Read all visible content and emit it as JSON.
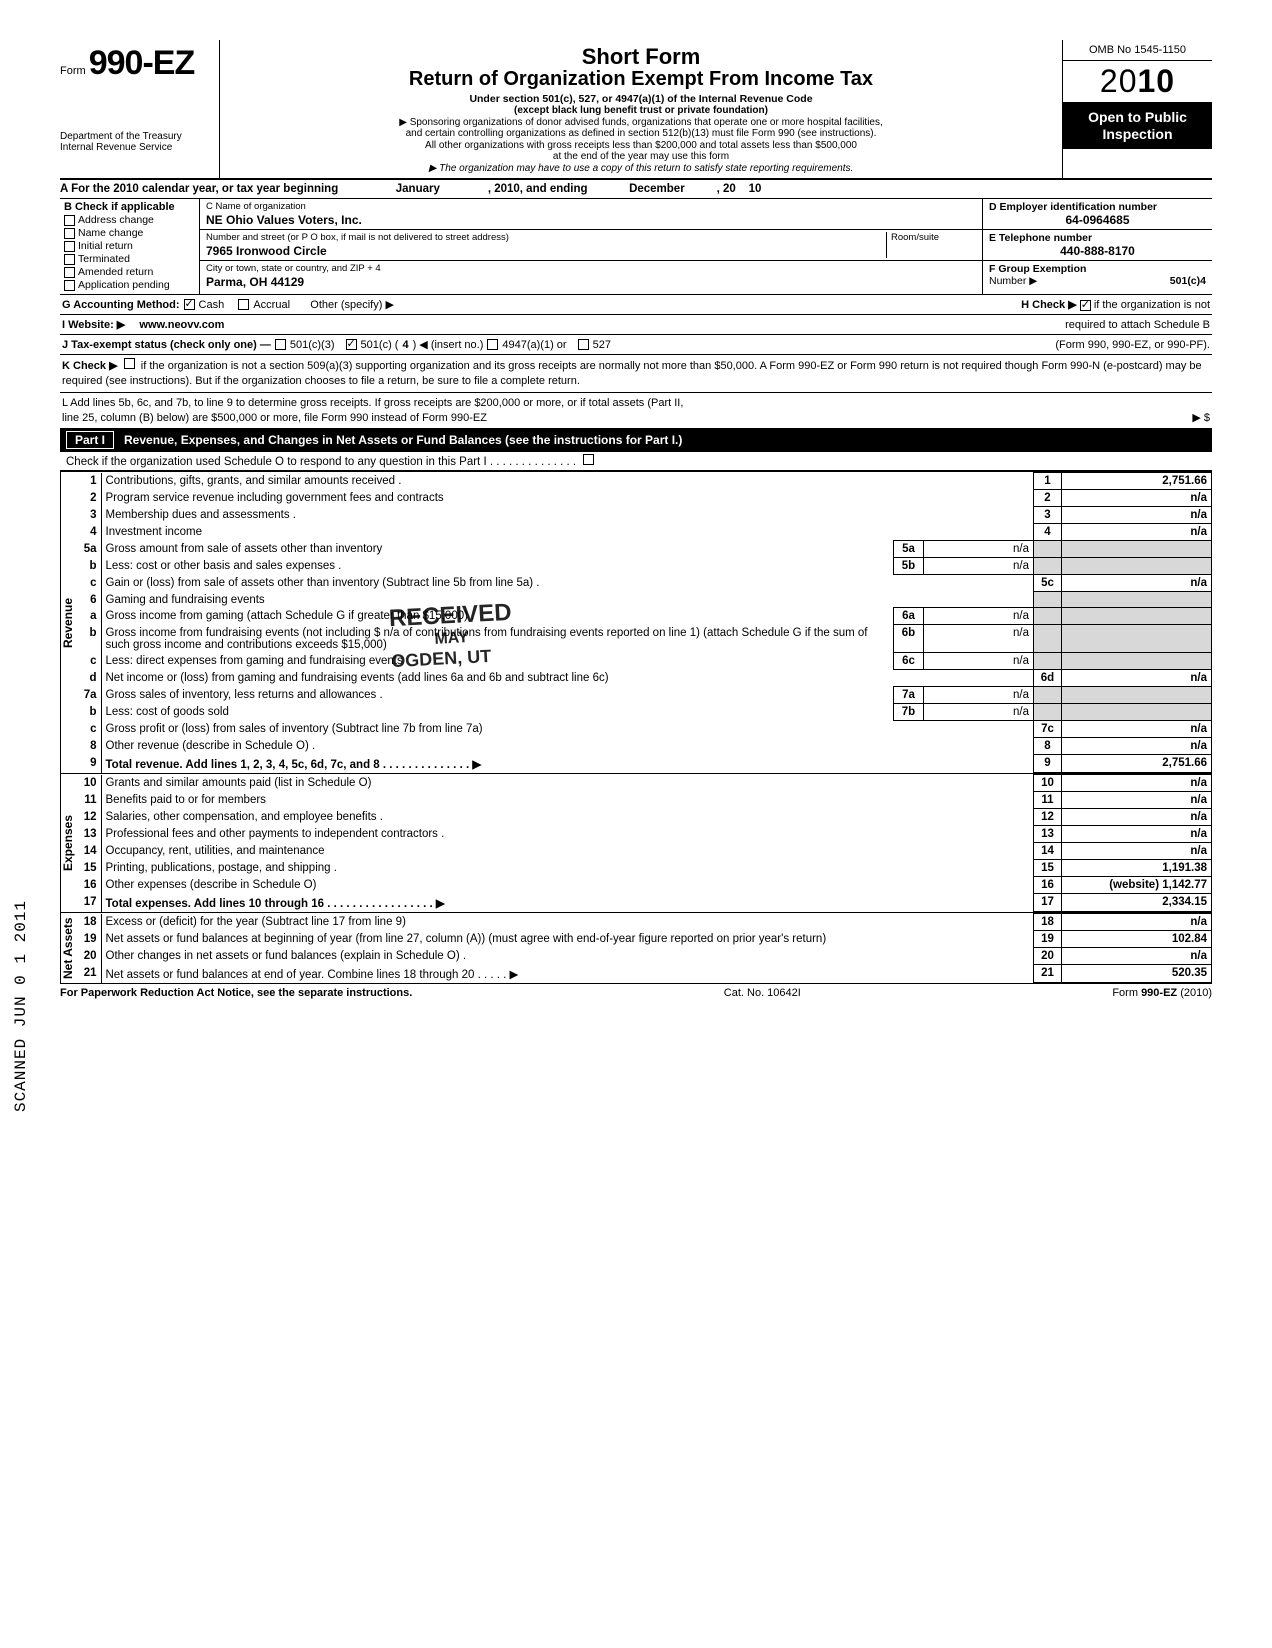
{
  "header": {
    "form_prefix": "Form",
    "form_number": "990-EZ",
    "dept1": "Department of the Treasury",
    "dept2": "Internal Revenue Service",
    "title1": "Short Form",
    "title2": "Return of Organization Exempt From Income Tax",
    "subtitle": "Under section 501(c), 527, or 4947(a)(1) of the Internal Revenue Code",
    "sub_paren": "(except black lung benefit trust or private foundation)",
    "sub_line1": "▶ Sponsoring organizations of donor advised funds, organizations that operate one or more hospital facilities,",
    "sub_line2": "and certain controlling organizations as defined in section 512(b)(13) must file Form 990 (see instructions).",
    "sub_line3": "All other organizations with gross receipts less than $200,000 and total assets less than $500,000",
    "sub_line4": "at the end of the year may use this form",
    "sub_line5": "▶ The organization may have to use a copy of this return to satisfy state reporting requirements.",
    "omb": "OMB No 1545-1150",
    "year_prefix": "20",
    "year_suffix": "10",
    "open1": "Open to Public",
    "open2": "Inspection"
  },
  "rowA": {
    "label": "A For the 2010 calendar year, or tax year beginning",
    "begin": "January",
    "mid": ", 2010, and ending",
    "end": "December",
    "y": ", 20",
    "yv": "10"
  },
  "colB": {
    "hdr": "B  Check if applicable",
    "items": [
      "Address change",
      "Name change",
      "Initial return",
      "Terminated",
      "Amended return",
      "Application pending"
    ]
  },
  "colC": {
    "name_lbl": "C  Name of organization",
    "name": "NE Ohio Values Voters, Inc.",
    "street_lbl": "Number and street (or P O  box, if mail is not delivered to street address)",
    "street": "7965 Ironwood Circle",
    "room_lbl": "Room/suite",
    "city_lbl": "City or town, state or country, and ZIP + 4",
    "city": "Parma, OH 44129"
  },
  "colD": {
    "ein_lbl": "D Employer identification number",
    "ein": "64-0964685",
    "tel_lbl": "E  Telephone number",
    "tel": "440-888-8170",
    "grp_lbl": "F  Group Exemption",
    "grp2": "Number  ▶",
    "grp_val": "501(c)4"
  },
  "lineG": {
    "lbl": "G  Accounting Method:",
    "cash": "Cash",
    "accrual": "Accrual",
    "other": "Other (specify) ▶",
    "h_lbl": "H  Check ▶",
    "h_txt": "if the organization is not",
    "h_txt2": "required to attach Schedule B",
    "h_txt3": "(Form 990, 990-EZ, or 990-PF)."
  },
  "lineI": {
    "lbl": "I   Website: ▶",
    "val": "www.neovv.com"
  },
  "lineJ": {
    "lbl": "J  Tax-exempt status (check only one) —",
    "c3": "501(c)(3)",
    "c": "501(c) (",
    "cn": "4",
    "c2": ")  ◀ (insert no.)",
    "a1": "4947(a)(1) or",
    "s527": "527"
  },
  "lineK": {
    "lbl": "K  Check ▶",
    "txt": "if the organization is not a section 509(a)(3) supporting organization and its gross receipts are normally not more than $50,000.  A Form 990-EZ or Form 990 return is not required though Form 990-N (e-postcard) may be required (see instructions). But if the organization chooses to file a return, be sure to file a complete return."
  },
  "lineL": {
    "txt1": "L  Add lines 5b, 6c, and 7b, to line 9 to determine gross receipts. If gross receipts are $200,000 or more, or if total assets (Part II,",
    "txt2": "line  25, column (B) below) are $500,000 or more, file Form 990 instead of Form 990-EZ",
    "arrow": "▶  $"
  },
  "part1": {
    "label": "Part I",
    "title": "Revenue, Expenses, and Changes in Net Assets or Fund Balances (see the instructions for Part I.)",
    "sub": "Check if the organization used Schedule O to respond to any question in this Part I  .   .   .   .   .   .   .   .   .   .   .   .   .   ."
  },
  "sections": {
    "revenue": "Revenue",
    "expenses": "Expenses",
    "netassets": "Net Assets"
  },
  "rows": [
    {
      "n": "1",
      "d": "Contributions, gifts, grants, and similar amounts received .",
      "rn": "1",
      "rv": "2,751.66"
    },
    {
      "n": "2",
      "d": "Program service revenue including government fees and contracts",
      "rn": "2",
      "rv": "n/a"
    },
    {
      "n": "3",
      "d": "Membership dues and assessments .",
      "rn": "3",
      "rv": "n/a"
    },
    {
      "n": "4",
      "d": "Investment income",
      "rn": "4",
      "rv": "n/a"
    },
    {
      "n": "5a",
      "d": "Gross amount from sale of assets other than inventory",
      "mn": "5a",
      "mv": "n/a"
    },
    {
      "n": "b",
      "d": "Less: cost or other basis and sales expenses .",
      "mn": "5b",
      "mv": "n/a"
    },
    {
      "n": "c",
      "d": "Gain or (loss) from sale of assets other than inventory (Subtract line 5b from line 5a)  .",
      "rn": "5c",
      "rv": "n/a"
    },
    {
      "n": "6",
      "d": "Gaming and fundraising events"
    },
    {
      "n": "a",
      "d": "Gross income from gaming (attach Schedule G if greater than $15,000) .",
      "mn": "6a",
      "mv": "n/a"
    },
    {
      "n": "b",
      "d": "Gross income from fundraising events (not including $                n/a of contributions from fundraising events reported on line 1) (attach Schedule G if the sum of such gross income and contributions exceeds $15,000)",
      "mn": "6b",
      "mv": "n/a"
    },
    {
      "n": "c",
      "d": "Less: direct expenses from gaming and fundraising events",
      "mn": "6c",
      "mv": "n/a"
    },
    {
      "n": "d",
      "d": "Net income or (loss) from gaming and fundraising events (add lines 6a and 6b and subtract line 6c)",
      "rn": "6d",
      "rv": "n/a"
    },
    {
      "n": "7a",
      "d": "Gross sales of inventory, less returns and allowances .",
      "mn": "7a",
      "mv": "n/a"
    },
    {
      "n": "b",
      "d": "Less: cost of goods sold",
      "mn": "7b",
      "mv": "n/a"
    },
    {
      "n": "c",
      "d": "Gross profit or (loss) from sales of inventory (Subtract line 7b from line 7a)",
      "rn": "7c",
      "rv": "n/a"
    },
    {
      "n": "8",
      "d": "Other revenue (describe in Schedule O) .",
      "rn": "8",
      "rv": "n/a"
    },
    {
      "n": "9",
      "d": "Total revenue. Add lines 1, 2, 3, 4, 5c, 6d, 7c, and 8   .   .   .   .   .   .   .   .   .   .   .   .   .   .   ▶",
      "rn": "9",
      "rv": "2,751.66",
      "bold": true
    }
  ],
  "exp_rows": [
    {
      "n": "10",
      "d": "Grants and similar amounts paid (list in Schedule O)",
      "rn": "10",
      "rv": "n/a"
    },
    {
      "n": "11",
      "d": "Benefits paid to or for members",
      "rn": "11",
      "rv": "n/a"
    },
    {
      "n": "12",
      "d": "Salaries, other compensation, and employee benefits .",
      "rn": "12",
      "rv": "n/a"
    },
    {
      "n": "13",
      "d": "Professional fees and other payments to independent contractors .",
      "rn": "13",
      "rv": "n/a"
    },
    {
      "n": "14",
      "d": "Occupancy, rent, utilities, and maintenance",
      "rn": "14",
      "rv": "n/a"
    },
    {
      "n": "15",
      "d": "Printing, publications, postage, and shipping .",
      "rn": "15",
      "rv": "1,191.38"
    },
    {
      "n": "16",
      "d": "Other expenses (describe in Schedule O)",
      "rn": "16",
      "rv": "(website) 1,142.77"
    },
    {
      "n": "17",
      "d": "Total expenses. Add lines 10 through 16  .   .   .   .   .   .   .   .   .   .   .   .   .   .   .   .   .   ▶",
      "rn": "17",
      "rv": "2,334.15",
      "bold": true
    }
  ],
  "na_rows": [
    {
      "n": "18",
      "d": "Excess or (deficit) for the year (Subtract line 17 from line 9)",
      "rn": "18",
      "rv": "n/a"
    },
    {
      "n": "19",
      "d": "Net assets or fund balances at beginning of year (from line 27, column (A)) (must agree with end-of-year figure reported on prior year's return)",
      "rn": "19",
      "rv": "102.84"
    },
    {
      "n": "20",
      "d": "Other changes in net assets or fund balances (explain in Schedule O) .",
      "rn": "20",
      "rv": "n/a"
    },
    {
      "n": "21",
      "d": "Net assets or fund balances at end of year. Combine lines 18 through 20   .   .   .   .   .   ▶",
      "rn": "21",
      "rv": "520.35"
    }
  ],
  "footer": {
    "left": "For Paperwork Reduction Act Notice, see the separate instructions.",
    "mid": "Cat. No. 10642I",
    "right": "Form 990-EZ (2010)"
  },
  "stamp": {
    "l1": "RECEIVED",
    "l2": "MAY",
    "l3": "OGDEN, UT"
  },
  "scanned": "SCANNED JUN 0 1 2011"
}
